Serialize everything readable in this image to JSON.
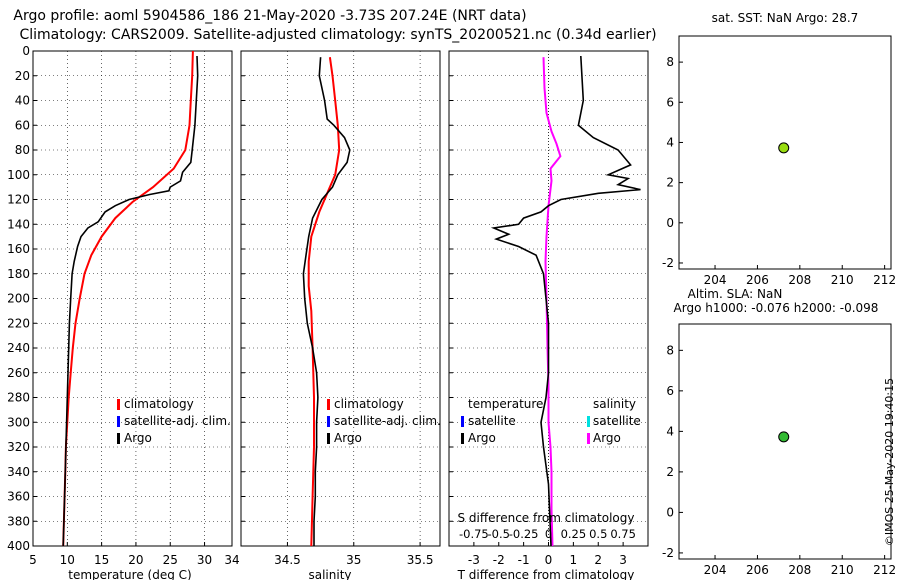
{
  "header": {
    "title_line1": "Argo profile: aoml 5904586_186 21-May-2020 -3.73S 207.24E (NRT data)",
    "title_line2": "Climatology: CARS2009. Satellite-adjusted climatology: synTS_20200521.nc (0.34d earlier)"
  },
  "footer": {
    "credit": "©IMOS 25-May-2020 19:40:15"
  },
  "colors": {
    "argo": "#000000",
    "climatology": "#ff0000",
    "satellite": "#0000ff",
    "s_diff": "#ff00ff",
    "s_sat": "#00e0e0",
    "marker_top": "#99dd11",
    "marker_bottom": "#33bb33"
  },
  "chart_data": [
    {
      "name": "temperature-panel",
      "type": "line",
      "xlabel": "temperature (deg C)",
      "ylabel": "",
      "xlim": [
        5,
        34
      ],
      "ylim": [
        0,
        400
      ],
      "x_ticks": [
        5,
        10,
        15,
        20,
        25,
        30
      ],
      "y_ticks": [
        0,
        20,
        40,
        60,
        80,
        100,
        120,
        140,
        160,
        180,
        200,
        220,
        240,
        260,
        280,
        300,
        320,
        340,
        360,
        380,
        400
      ],
      "legend": [
        "climatology",
        "satellite-adj. clim.",
        "Argo"
      ],
      "series": [
        {
          "name": "climatology",
          "points": [
            [
              28.3,
              0
            ],
            [
              28.2,
              20
            ],
            [
              28.0,
              40
            ],
            [
              27.8,
              60
            ],
            [
              27.2,
              80
            ],
            [
              25.5,
              95
            ],
            [
              22.5,
              110
            ],
            [
              19.5,
              122
            ],
            [
              17.0,
              135
            ],
            [
              15.0,
              150
            ],
            [
              13.5,
              165
            ],
            [
              12.5,
              180
            ],
            [
              11.8,
              200
            ],
            [
              11.2,
              220
            ],
            [
              10.8,
              240
            ],
            [
              10.5,
              260
            ],
            [
              10.2,
              280
            ],
            [
              10.0,
              300
            ],
            [
              9.8,
              320
            ],
            [
              9.7,
              340
            ],
            [
              9.6,
              360
            ],
            [
              9.5,
              380
            ],
            [
              9.4,
              400
            ]
          ]
        },
        {
          "name": "Argo",
          "points": [
            [
              28.9,
              4
            ],
            [
              29.0,
              20
            ],
            [
              28.8,
              40
            ],
            [
              28.6,
              60
            ],
            [
              28.2,
              80
            ],
            [
              28.0,
              90
            ],
            [
              26.8,
              98
            ],
            [
              26.5,
              105
            ],
            [
              25.0,
              110
            ],
            [
              24.8,
              113
            ],
            [
              22.0,
              116
            ],
            [
              19.0,
              120
            ],
            [
              17.0,
              125
            ],
            [
              15.5,
              130
            ],
            [
              14.5,
              138
            ],
            [
              13.0,
              143
            ],
            [
              12.0,
              150
            ],
            [
              11.5,
              158
            ],
            [
              11.0,
              170
            ],
            [
              10.7,
              180
            ],
            [
              10.5,
              200
            ],
            [
              10.3,
              220
            ],
            [
              10.2,
              240
            ],
            [
              10.1,
              260
            ],
            [
              10.0,
              280
            ],
            [
              9.9,
              300
            ],
            [
              9.8,
              320
            ],
            [
              9.7,
              340
            ],
            [
              9.6,
              360
            ],
            [
              9.5,
              380
            ],
            [
              9.4,
              400
            ]
          ]
        }
      ]
    },
    {
      "name": "salinity-panel",
      "type": "line",
      "xlabel": "salinity",
      "ylabel": "",
      "xlim": [
        34.15,
        35.65
      ],
      "ylim": [
        0,
        400
      ],
      "x_ticks": [
        34.5,
        35,
        35.5
      ],
      "legend": [
        "climatology",
        "satellite-adj. clim.",
        "Argo"
      ],
      "series": [
        {
          "name": "climatology",
          "points": [
            [
              34.82,
              5
            ],
            [
              34.84,
              20
            ],
            [
              34.86,
              40
            ],
            [
              34.88,
              60
            ],
            [
              34.89,
              80
            ],
            [
              34.86,
              100
            ],
            [
              34.8,
              115
            ],
            [
              34.74,
              130
            ],
            [
              34.68,
              150
            ],
            [
              34.66,
              170
            ],
            [
              34.66,
              190
            ],
            [
              34.68,
              210
            ],
            [
              34.69,
              240
            ],
            [
              34.7,
              280
            ],
            [
              34.7,
              320
            ],
            [
              34.69,
              360
            ],
            [
              34.68,
              400
            ]
          ]
        },
        {
          "name": "Argo",
          "points": [
            [
              34.75,
              5
            ],
            [
              34.74,
              20
            ],
            [
              34.78,
              40
            ],
            [
              34.8,
              55
            ],
            [
              34.85,
              60
            ],
            [
              34.93,
              70
            ],
            [
              34.97,
              80
            ],
            [
              34.95,
              90
            ],
            [
              34.88,
              100
            ],
            [
              34.84,
              110
            ],
            [
              34.76,
              120
            ],
            [
              34.69,
              135
            ],
            [
              34.66,
              150
            ],
            [
              34.64,
              165
            ],
            [
              34.62,
              180
            ],
            [
              34.63,
              200
            ],
            [
              34.65,
              220
            ],
            [
              34.69,
              240
            ],
            [
              34.72,
              260
            ],
            [
              34.73,
              280
            ],
            [
              34.72,
              300
            ],
            [
              34.72,
              320
            ],
            [
              34.71,
              340
            ],
            [
              34.71,
              360
            ],
            [
              34.7,
              380
            ],
            [
              34.7,
              400
            ]
          ]
        }
      ]
    },
    {
      "name": "difference-panel",
      "type": "line",
      "xlabel": "T difference from climatology",
      "top_xlabel": "S difference from climatology",
      "xlim": [
        -4,
        4
      ],
      "s_xlim": [
        -1,
        1
      ],
      "ylim": [
        0,
        400
      ],
      "x_ticks": [
        -3,
        -2,
        -1,
        0,
        1,
        2,
        3
      ],
      "x_tick_labels": [
        "-3",
        "-2",
        "-1",
        "0",
        "1",
        "2",
        "3"
      ],
      "s_ticks": [
        -0.75,
        -0.5,
        -0.25,
        0,
        0.25,
        0.5,
        0.75
      ],
      "s_tick_labels": [
        "-0.75",
        "-0.5",
        "-0.25",
        "0",
        "0.25",
        "0.5",
        "0.75"
      ],
      "legend_temperature": [
        "temperature",
        "satellite",
        "Argo"
      ],
      "legend_salinity": [
        "salinity",
        "satellite",
        "Argo"
      ],
      "series": [
        {
          "name": "T difference (Argo)",
          "points": [
            [
              1.3,
              4
            ],
            [
              1.4,
              40
            ],
            [
              1.2,
              60
            ],
            [
              1.8,
              70
            ],
            [
              2.8,
              80
            ],
            [
              3.3,
              92
            ],
            [
              2.4,
              100
            ],
            [
              3.2,
              103
            ],
            [
              2.8,
              108
            ],
            [
              3.7,
              112
            ],
            [
              2.0,
              115
            ],
            [
              0.5,
              120
            ],
            [
              0.0,
              125
            ],
            [
              -0.3,
              130
            ],
            [
              -1.0,
              135
            ],
            [
              -1.2,
              140
            ],
            [
              -2.2,
              143
            ],
            [
              -1.6,
              148
            ],
            [
              -2.1,
              152
            ],
            [
              -1.2,
              158
            ],
            [
              -0.5,
              165
            ],
            [
              -0.2,
              180
            ],
            [
              -0.1,
              200
            ],
            [
              0.0,
              220
            ],
            [
              0.0,
              260
            ],
            [
              -0.1,
              280
            ],
            [
              -0.3,
              300
            ],
            [
              -0.2,
              320
            ],
            [
              0.0,
              350
            ],
            [
              0.1,
              400
            ]
          ]
        },
        {
          "name": "S difference (Argo)",
          "points": [
            [
              -0.05,
              5
            ],
            [
              -0.04,
              30
            ],
            [
              -0.02,
              50
            ],
            [
              0.03,
              65
            ],
            [
              0.08,
              75
            ],
            [
              0.12,
              85
            ],
            [
              0.02,
              95
            ],
            [
              0.03,
              105
            ],
            [
              0.0,
              125
            ],
            [
              -0.02,
              150
            ],
            [
              -0.03,
              170
            ],
            [
              -0.02,
              200
            ],
            [
              -0.01,
              240
            ],
            [
              0.0,
              270
            ],
            [
              0.0,
              300
            ],
            [
              0.02,
              320
            ],
            [
              0.03,
              340
            ],
            [
              0.03,
              370
            ],
            [
              0.04,
              400
            ]
          ]
        }
      ]
    },
    {
      "name": "sst-panel",
      "type": "scatter",
      "title": "sat. SST: NaN Argo: 28.7",
      "xlim": [
        202.3,
        212.3
      ],
      "ylim": [
        -2.3,
        9.3
      ],
      "x_ticks": [
        204,
        206,
        208,
        210,
        212
      ],
      "y_ticks": [
        -2,
        0,
        2,
        4,
        6,
        8
      ],
      "points": [
        [
          207.24,
          3.73
        ]
      ]
    },
    {
      "name": "sla-panel",
      "type": "scatter",
      "title_line1": "Altim. SLA: NaN",
      "title_line2": "Argo h1000: -0.076 h2000: -0.098",
      "xlim": [
        202.3,
        212.3
      ],
      "ylim": [
        -2.3,
        9.3
      ],
      "x_ticks": [
        204,
        206,
        208,
        210,
        212
      ],
      "y_ticks": [
        -2,
        0,
        2,
        4,
        6,
        8
      ],
      "points": [
        [
          207.24,
          3.73
        ]
      ]
    }
  ]
}
